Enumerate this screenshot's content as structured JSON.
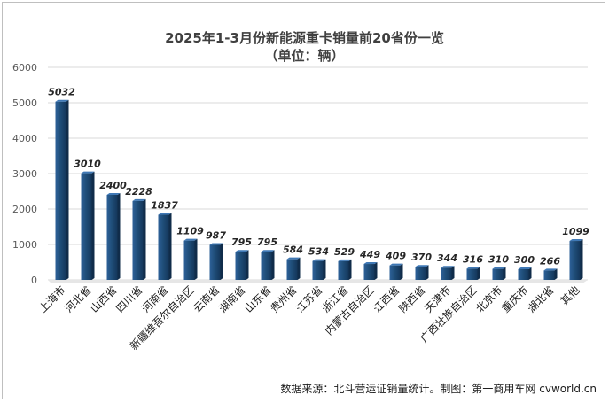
{
  "chart_data": {
    "type": "bar",
    "title": "2025年1-3月份新能源重卡销量前20省份一览",
    "subtitle": "（单位：辆）",
    "categories": [
      "上海市",
      "河北省",
      "山西省",
      "四川省",
      "河南省",
      "新疆维吾尔自治区",
      "云南省",
      "湖南省",
      "山东省",
      "贵州省",
      "江苏省",
      "浙江省",
      "内蒙古自治区",
      "江西省",
      "陕西省",
      "天津市",
      "广西壮族自治区",
      "北京市",
      "重庆市",
      "湖北省",
      "其他"
    ],
    "values": [
      5032,
      3010,
      2400,
      2228,
      1837,
      1109,
      987,
      795,
      795,
      584,
      534,
      529,
      449,
      409,
      370,
      344,
      316,
      310,
      300,
      266,
      1099
    ],
    "ylim": [
      0,
      6000
    ],
    "yticks": [
      0,
      1000,
      2000,
      3000,
      4000,
      5000,
      6000
    ],
    "grid": true,
    "legend": "none",
    "bar_color": "#1f4e79",
    "source": "数据来源：北斗营运证销量统计。制图：第一商用车网 cvworld.cn"
  }
}
